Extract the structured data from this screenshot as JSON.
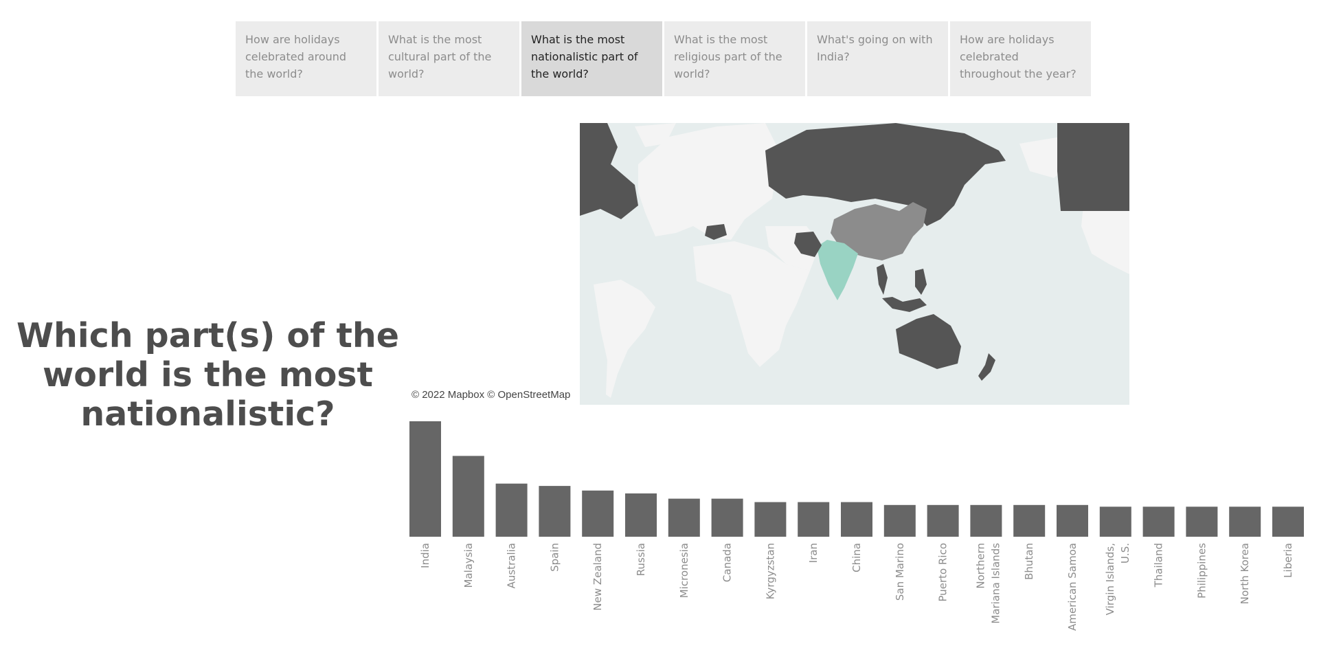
{
  "tabs": [
    {
      "label": "How are holidays celebrated around the world?",
      "active": false
    },
    {
      "label": "What is the most cultural part of the world?",
      "active": false
    },
    {
      "label": "What is the most nationalistic part of the world?",
      "active": true
    },
    {
      "label": "What is the most religious part of the world?",
      "active": false
    },
    {
      "label": "What's going on with India?",
      "active": false
    },
    {
      "label": "How are holidays celebrated throughout the year?",
      "active": false
    }
  ],
  "title": "Which part(s) of the world is the most nationalistic?",
  "map": {
    "attribution": "© 2022 Mapbox © OpenStreetMap",
    "colors": {
      "ocean": "#e6eded",
      "land": "#f4f4f4",
      "dark": "#555555",
      "mid": "#8c8c8c",
      "highlight": "#99d3c3"
    }
  },
  "chart_data": {
    "type": "bar",
    "categories": [
      "India",
      "Malaysia",
      "Australia",
      "Spain",
      "New Zealand",
      "Russia",
      "Micronesia",
      "Canada",
      "Kyrgyzstan",
      "Iran",
      "China",
      "San Marino",
      "Puerto Rico",
      "Northern Mariana Islands",
      "Bhutan",
      "American Samoa",
      "Virgin Islands, U.S.",
      "Thailand",
      "Philippines",
      "North Korea",
      "Liberia"
    ],
    "values": [
      10,
      7,
      4.6,
      4.4,
      4,
      3.75,
      3.3,
      3.3,
      3,
      3,
      3,
      2.75,
      2.75,
      2.75,
      2.75,
      2.75,
      2.6,
      2.6,
      2.6,
      2.6,
      2.6
    ],
    "ylim": [
      0,
      10
    ],
    "bar_color": "#666666",
    "label_color": "#8c8c8c"
  }
}
